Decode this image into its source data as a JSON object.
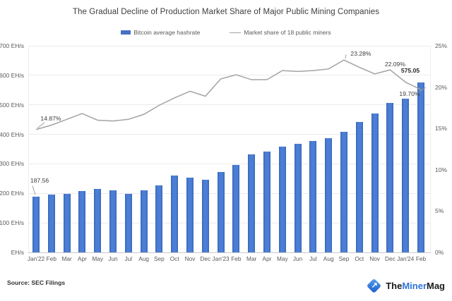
{
  "title": "The Gradual Decline of Production Market Share of Major Public Mining Companies",
  "legend": {
    "items": [
      {
        "label": "Bitcoin average hashrate",
        "swatch": "bar",
        "color": "#4472C4"
      },
      {
        "label": "Market share of 18 public miners",
        "swatch": "line",
        "color": "#a3a3a3"
      }
    ]
  },
  "source": "Source: SEC Filings",
  "logo": {
    "part1": "The",
    "part2": "Miner",
    "part3": "Mag",
    "accent_color": "#2e75d8",
    "icon": "diamond-arrow"
  },
  "chart_data": {
    "type": "bar+line",
    "title": "The Gradual Decline of Production Market Share of Major Public Mining Companies",
    "categories": [
      "Jan'22",
      "Feb",
      "Mar",
      "Apr",
      "May",
      "Jun",
      "Jul",
      "Aug",
      "Sep",
      "Oct",
      "Nov",
      "Dec",
      "Jan'23",
      "Feb",
      "Mar",
      "Apr",
      "May",
      "Jun",
      "Jul",
      "Aug",
      "Sep",
      "Oct",
      "Nov",
      "Dec",
      "Jan'24",
      "Feb"
    ],
    "series": [
      {
        "name": "Bitcoin average hashrate",
        "type": "bar",
        "axis": "left",
        "unit": "EH/s",
        "color": "#4472C4",
        "values": [
          187.56,
          196,
          199,
          208,
          216,
          211,
          199,
          210,
          227,
          260,
          254,
          247,
          272,
          296,
          332,
          342,
          358,
          369,
          377,
          386,
          408,
          443,
          470,
          507,
          521,
          575.05
        ]
      },
      {
        "name": "Market share of 18 public miners",
        "type": "line",
        "axis": "right",
        "unit": "%",
        "color": "#a3a3a3",
        "values": [
          14.87,
          15.4,
          16.1,
          16.8,
          16.0,
          15.9,
          16.1,
          16.7,
          17.8,
          18.7,
          19.5,
          18.9,
          21.0,
          21.5,
          20.9,
          20.9,
          22.0,
          21.9,
          22.0,
          22.2,
          23.28,
          22.4,
          21.6,
          22.09,
          20.6,
          19.7
        ]
      }
    ],
    "left_axis": {
      "min": 0,
      "max": 700,
      "tick_step": 100,
      "ticks": [
        "700 EH/s",
        "600 EH/s",
        "500 EH/s",
        "400 EH/s",
        "300 EH/s",
        "200 EH/s",
        "100 EH/s",
        "EH/s"
      ],
      "tick_values": [
        700,
        600,
        500,
        400,
        300,
        200,
        100,
        0
      ]
    },
    "right_axis": {
      "min": 0,
      "max": 25,
      "tick_step": 5,
      "ticks": [
        "25%",
        "20%",
        "15%",
        "10%",
        "5%",
        "0%"
      ],
      "tick_values": [
        25,
        20,
        15,
        10,
        5,
        0
      ]
    },
    "grid": "horizontal",
    "legend_position": "top",
    "annotations": [
      {
        "series": 0,
        "index": 0,
        "text": "187.56",
        "bold": false,
        "ox": 5,
        "oy": -23,
        "leader": [
          -5,
          -16,
          -1,
          -3
        ]
      },
      {
        "series": 0,
        "index": 25,
        "text": "575.05",
        "bold": true,
        "ox": -15,
        "oy": -17,
        "leader": null
      },
      {
        "series": 1,
        "index": 0,
        "text": "14.87%",
        "bold": false,
        "ox": 21,
        "oy": -16,
        "leader": [
          12,
          -10,
          2,
          -2
        ]
      },
      {
        "series": 1,
        "index": 20,
        "text": "23.28%",
        "bold": false,
        "ox": 24,
        "oy": -9,
        "leader": [
          3,
          -8,
          2,
          -2
        ]
      },
      {
        "series": 1,
        "index": 23,
        "text": "22.09%",
        "bold": false,
        "ox": 7,
        "oy": -8,
        "leader": null
      },
      {
        "series": 1,
        "index": 25,
        "text": "19.70%",
        "bold": false,
        "ox": -16,
        "oy": 6,
        "leader": [
          -4,
          4,
          7,
          -3
        ]
      }
    ]
  }
}
